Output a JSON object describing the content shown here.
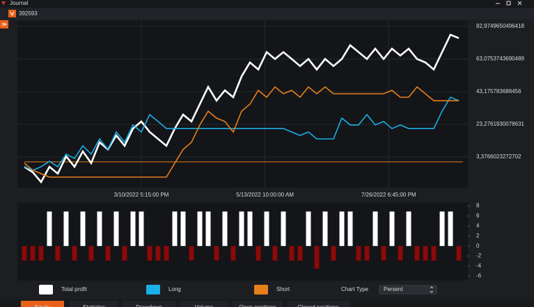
{
  "window": {
    "title": "Journal"
  },
  "account": {
    "number": "392593"
  },
  "chart_data": [
    {
      "type": "line",
      "x": [
        0,
        1,
        2,
        3,
        4,
        5,
        6,
        7,
        8,
        9,
        10,
        11,
        12,
        13,
        14,
        15,
        16,
        17,
        18,
        19,
        20,
        21,
        22,
        23,
        24,
        25,
        26,
        27,
        28,
        29,
        30,
        31,
        32,
        33,
        34,
        35,
        36,
        37,
        38,
        39,
        40,
        41,
        42,
        43,
        44,
        45,
        46,
        47,
        48,
        49,
        50,
        51,
        52
      ],
      "xlim": [
        -0.83,
        53.08
      ],
      "xticks": [
        {
          "value": 14,
          "label": "3/10/2022 5:15:00 PM"
        },
        {
          "value": 28.8,
          "label": "5/13/2022 10:00:00 AM"
        },
        {
          "value": 43.6,
          "label": "7/26/2022 6:45:00 PM"
        }
      ],
      "ylim": [
        -15.25,
        86.36
      ],
      "yticks": [
        {
          "value": 82.9749650496418,
          "label": "82,9749650496418"
        },
        {
          "value": 63.0753743690489,
          "label": "63,0753743690489"
        },
        {
          "value": 43.175783688456,
          "label": "43,175783688456"
        },
        {
          "value": 23.2761930078631,
          "label": "23,2761930078631"
        },
        {
          "value": 3.3766023272702,
          "label": "3,3766023272702"
        }
      ],
      "grid": true,
      "reference_line": {
        "value": 0.4,
        "color": "#e8801a"
      },
      "series": [
        {
          "name": "Total profit",
          "color": "#ffffff",
          "values": [
            -2.6,
            -5.9,
            -11.9,
            -2.6,
            -6.8,
            3.8,
            -2.6,
            6.8,
            -0.4,
            12.3,
            8.0,
            16.5,
            10.2,
            20.7,
            25.0,
            18.6,
            14.4,
            10.2,
            20.7,
            29.2,
            25.0,
            35.6,
            46.1,
            37.7,
            44.0,
            39.8,
            52.5,
            61.0,
            56.7,
            67.3,
            63.1,
            67.3,
            63.1,
            58.8,
            63.1,
            56.7,
            63.1,
            58.8,
            63.1,
            71.5,
            67.3,
            63.1,
            69.4,
            63.1,
            69.4,
            65.2,
            69.4,
            63.1,
            61.0,
            56.7,
            67.3,
            77.9,
            75.8
          ]
        },
        {
          "name": "Long",
          "color": "#1ab0e8",
          "values": [
            -2.6,
            -4.7,
            -2.6,
            0.8,
            -2.6,
            5.1,
            2.5,
            10.2,
            5.1,
            14.4,
            8.0,
            18.6,
            12.3,
            22.9,
            18.6,
            29.2,
            25.0,
            20.7,
            20.7,
            20.7,
            20.7,
            20.7,
            20.7,
            20.7,
            20.7,
            20.7,
            20.7,
            20.7,
            20.7,
            20.7,
            20.7,
            20.7,
            18.6,
            16.5,
            18.6,
            14.4,
            14.4,
            14.4,
            27.1,
            22.9,
            22.9,
            29.2,
            22.9,
            25.0,
            20.7,
            22.9,
            20.7,
            20.7,
            20.7,
            20.7,
            31.3,
            39.8,
            37.7
          ]
        },
        {
          "name": "Short",
          "color": "#e8801a",
          "values": [
            -0.4,
            -4.7,
            -6.8,
            -8.9,
            -8.9,
            -8.9,
            -8.9,
            -8.9,
            -8.9,
            -8.9,
            -8.9,
            -8.9,
            -8.9,
            -8.9,
            -8.9,
            -8.9,
            -8.9,
            -8.9,
            -0.4,
            8.0,
            12.3,
            22.9,
            31.3,
            27.1,
            25.0,
            18.6,
            31.3,
            35.6,
            44.0,
            39.8,
            46.1,
            41.9,
            44.0,
            39.8,
            46.1,
            41.9,
            46.1,
            41.9,
            41.9,
            41.9,
            41.9,
            41.9,
            41.9,
            41.9,
            44.0,
            39.8,
            39.8,
            46.1,
            41.9,
            37.7,
            37.7,
            37.7,
            37.7
          ]
        }
      ]
    },
    {
      "type": "bar",
      "x": [
        0,
        1,
        2,
        3,
        4,
        5,
        6,
        7,
        8,
        9,
        10,
        11,
        12,
        13,
        14,
        15,
        16,
        17,
        18,
        19,
        20,
        21,
        22,
        23,
        24,
        25,
        26,
        27,
        28,
        29,
        30,
        31,
        32,
        33,
        34,
        35,
        36,
        37,
        38,
        39,
        40,
        41,
        42,
        43,
        44,
        45,
        46,
        47,
        48,
        49,
        50,
        51,
        52
      ],
      "values": [
        -2.9,
        -2.9,
        -2.9,
        6.9,
        -2.9,
        6.9,
        -2.9,
        6.9,
        -2.9,
        6.9,
        -2.9,
        6.9,
        -2.9,
        6.9,
        6.9,
        -2.9,
        -2.9,
        -2.9,
        6.9,
        6.9,
        -2.9,
        6.9,
        6.9,
        -2.9,
        6.9,
        -2.9,
        6.9,
        6.9,
        -2.9,
        6.9,
        -2.9,
        6.9,
        -2.9,
        -2.9,
        6.9,
        -4.5,
        6.9,
        -2.9,
        6.9,
        6.9,
        -2.9,
        -2.9,
        6.9,
        -2.9,
        6.9,
        -2.9,
        6.9,
        -2.9,
        -2.9,
        -2.9,
        6.9,
        6.9,
        -2.9
      ],
      "xlim": [
        -0.83,
        53.08
      ],
      "ylim": [
        -6.5,
        8.5
      ],
      "yticks": [
        8,
        6,
        4,
        2,
        0,
        -2,
        -4,
        -6
      ],
      "positive_color": "#ffffff",
      "negative_color": "#8b0a0a"
    }
  ],
  "controls": {
    "chart_type_label": "Chart Type",
    "chart_type_value": "Persent"
  },
  "tabs": [
    "Equity",
    "Statistics",
    "Drawdown",
    "Volume",
    "Open positions",
    "Closed positions"
  ],
  "active_tab": 0
}
